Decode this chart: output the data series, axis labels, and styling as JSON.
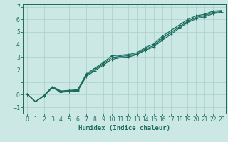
{
  "title": "",
  "xlabel": "Humidex (Indice chaleur)",
  "ylabel": "",
  "background_color": "#cce8e4",
  "grid_color": "#aacfc9",
  "line_color": "#1a6b5e",
  "spine_color": "#1a6b5e",
  "xlim": [
    -0.5,
    23.5
  ],
  "ylim": [
    -1.5,
    7.2
  ],
  "xticks": [
    0,
    1,
    2,
    3,
    4,
    5,
    6,
    7,
    8,
    9,
    10,
    11,
    12,
    13,
    14,
    15,
    16,
    17,
    18,
    19,
    20,
    21,
    22,
    23
  ],
  "yticks": [
    -1,
    0,
    1,
    2,
    3,
    4,
    5,
    6,
    7
  ],
  "line1_x": [
    0,
    1,
    2,
    3,
    4,
    5,
    6,
    7,
    8,
    9,
    10,
    11,
    12,
    13,
    14,
    15,
    16,
    17,
    18,
    19,
    20,
    21,
    22,
    23
  ],
  "line1_y": [
    0.05,
    -0.55,
    -0.1,
    0.6,
    0.25,
    0.3,
    0.35,
    1.55,
    2.0,
    2.45,
    2.95,
    3.05,
    3.1,
    3.25,
    3.65,
    3.9,
    4.5,
    4.95,
    5.4,
    5.85,
    6.15,
    6.3,
    6.55,
    6.6
  ],
  "line2_x": [
    0,
    1,
    2,
    3,
    4,
    5,
    6,
    7,
    8,
    9,
    10,
    11,
    12,
    13,
    14,
    15,
    16,
    17,
    18,
    19,
    20,
    21,
    22,
    23
  ],
  "line2_y": [
    0.05,
    -0.55,
    -0.1,
    0.55,
    0.2,
    0.25,
    0.3,
    1.45,
    1.9,
    2.35,
    2.8,
    2.95,
    3.0,
    3.2,
    3.55,
    3.8,
    4.35,
    4.8,
    5.3,
    5.75,
    6.05,
    6.2,
    6.45,
    6.55
  ],
  "line3_x": [
    0,
    1,
    2,
    3,
    4,
    5,
    6,
    7,
    8,
    9,
    10,
    11,
    12,
    13,
    14,
    15,
    16,
    17,
    18,
    19,
    20,
    21,
    22,
    23
  ],
  "line3_y": [
    0.05,
    -0.55,
    -0.05,
    0.65,
    0.3,
    0.35,
    0.4,
    1.65,
    2.1,
    2.55,
    3.1,
    3.15,
    3.2,
    3.35,
    3.75,
    4.05,
    4.65,
    5.1,
    5.55,
    5.98,
    6.28,
    6.4,
    6.65,
    6.7
  ],
  "xlabel_fontsize": 6.5,
  "tick_fontsize": 5.5,
  "lw": 0.9,
  "marker_size": 2.5
}
